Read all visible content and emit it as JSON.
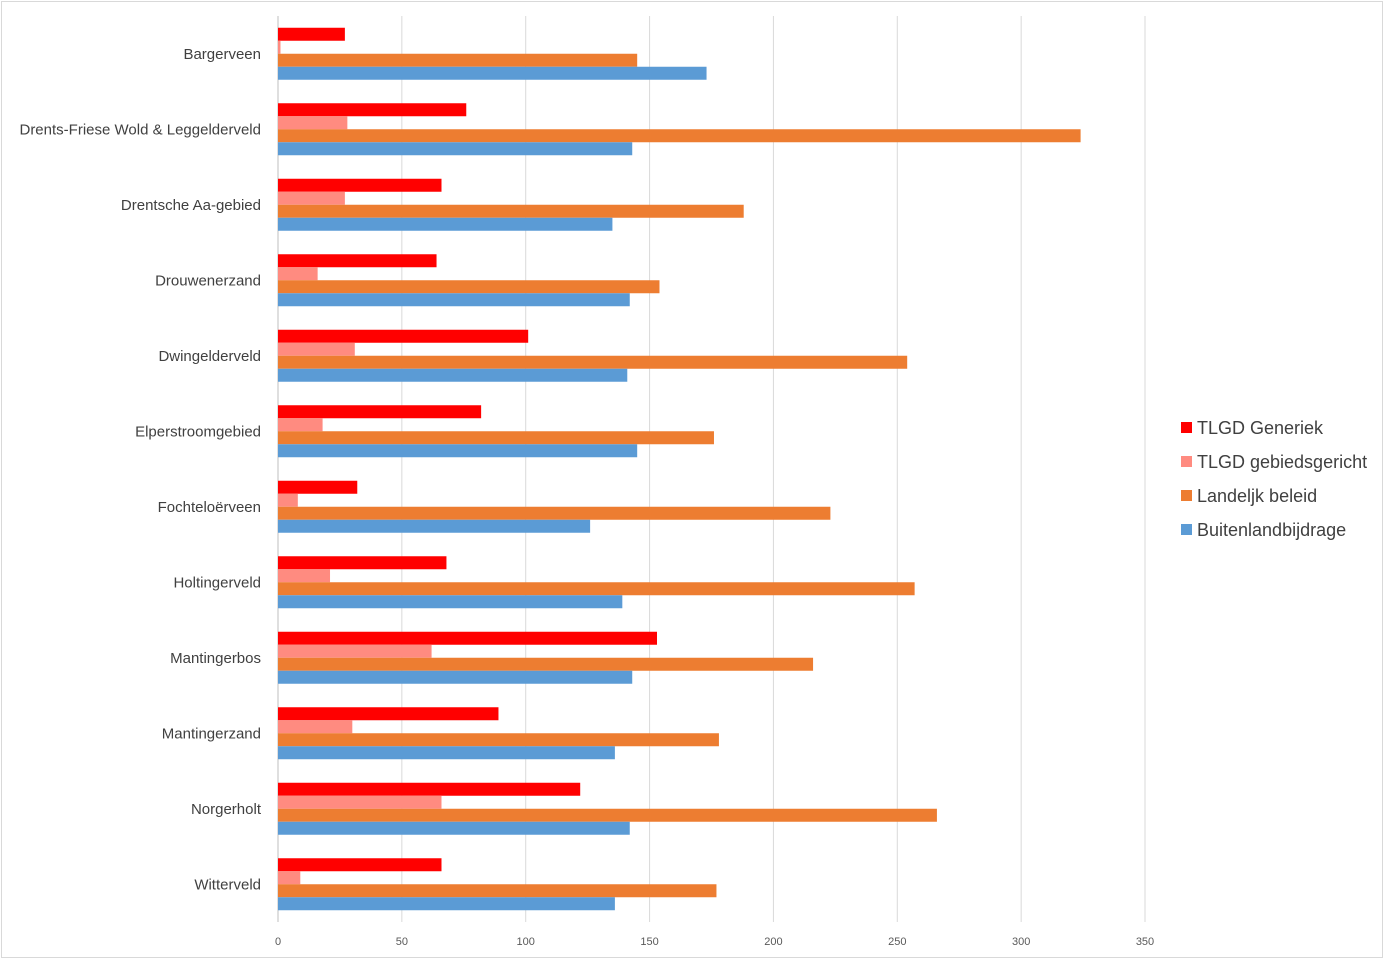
{
  "chart_data": {
    "type": "bar",
    "orientation": "horizontal",
    "title": "",
    "xlabel": "",
    "ylabel": "",
    "xlim": [
      0,
      350
    ],
    "xticks": [
      0,
      50,
      100,
      150,
      200,
      250,
      300,
      350
    ],
    "grid": true,
    "legend_position": "right",
    "categories": [
      "Bargerveen",
      "Drents-Friese Wold & Leggelderveld",
      "Drentsche Aa-gebied",
      "Drouwenerzand",
      "Dwingelderveld",
      "Elperstroomgebied",
      "Fochteloërveen",
      "Holtingerveld",
      "Mantingerbos",
      "Mantingerzand",
      "Norgerholt",
      "Witterveld"
    ],
    "series": [
      {
        "name": "TLGD Generiek",
        "color": "#ff0000",
        "values": [
          27,
          76,
          66,
          64,
          101,
          82,
          32,
          68,
          153,
          89,
          122,
          66
        ]
      },
      {
        "name": "TLGD gebiedsgericht",
        "color": "#ff8b80",
        "values": [
          1,
          28,
          27,
          16,
          31,
          18,
          8,
          21,
          62,
          30,
          66,
          9
        ]
      },
      {
        "name": "Landeljk beleid",
        "color": "#ed7d31",
        "values": [
          145,
          324,
          188,
          154,
          254,
          176,
          223,
          257,
          216,
          178,
          266,
          177
        ]
      },
      {
        "name": "Buitenlandbijdrage",
        "color": "#5b9bd5",
        "values": [
          173,
          143,
          135,
          142,
          141,
          145,
          126,
          139,
          143,
          136,
          142,
          136
        ]
      }
    ]
  }
}
